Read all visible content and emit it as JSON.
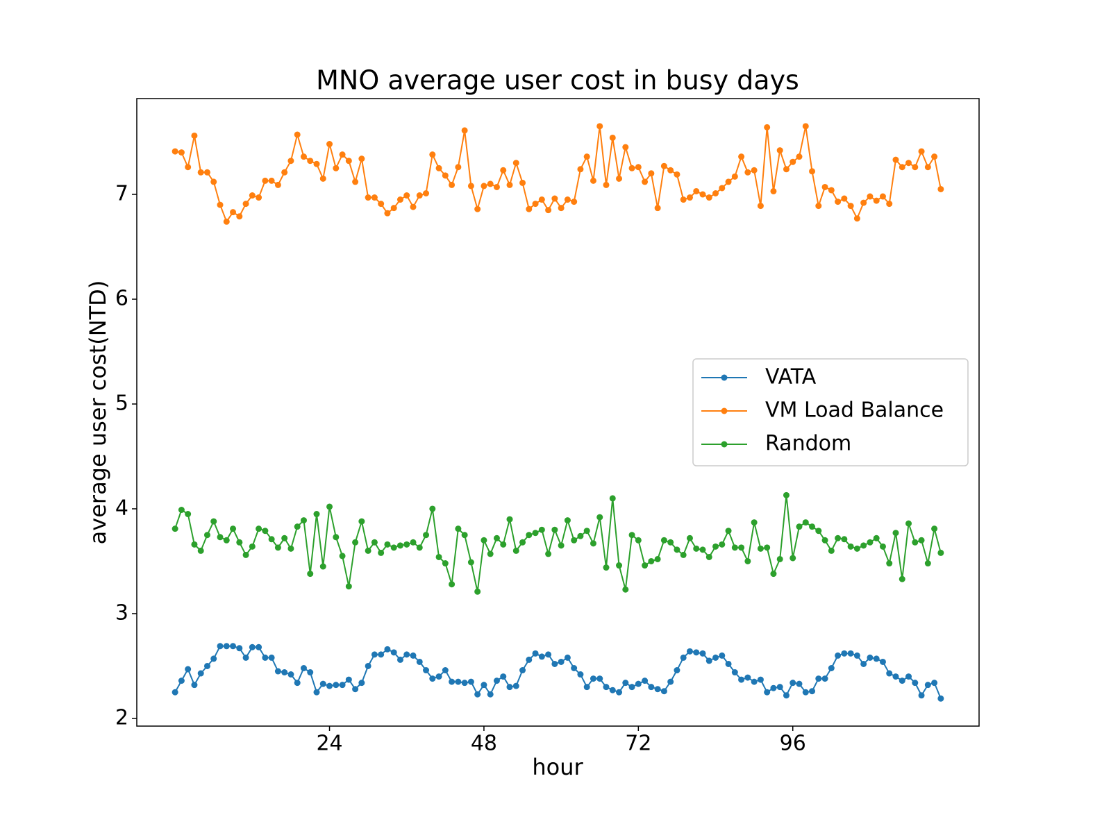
{
  "chart_data": {
    "type": "line",
    "title": "MNO average user cost in busy days",
    "xlabel": "hour",
    "ylabel": "average user cost(NTD)",
    "x": [
      0,
      1,
      2,
      3,
      4,
      5,
      6,
      7,
      8,
      9,
      10,
      11,
      12,
      13,
      14,
      15,
      16,
      17,
      18,
      19,
      20,
      21,
      22,
      23,
      24,
      25,
      26,
      27,
      28,
      29,
      30,
      31,
      32,
      33,
      34,
      35,
      36,
      37,
      38,
      39,
      40,
      41,
      42,
      43,
      44,
      45,
      46,
      47,
      48,
      49,
      50,
      51,
      52,
      53,
      54,
      55,
      56,
      57,
      58,
      59,
      60,
      61,
      62,
      63,
      64,
      65,
      66,
      67,
      68,
      69,
      70,
      71,
      72,
      73,
      74,
      75,
      76,
      77,
      78,
      79,
      80,
      81,
      82,
      83,
      84,
      85,
      86,
      87,
      88,
      89,
      90,
      91,
      92,
      93,
      94,
      95,
      96,
      97,
      98,
      99,
      100,
      101,
      102,
      103,
      104,
      105,
      106,
      107,
      108,
      109,
      110,
      111,
      112,
      113,
      114,
      115,
      116,
      117,
      118,
      119
    ],
    "series": [
      {
        "name": "VATA",
        "color": "#1f77b4",
        "values": [
          2.25,
          2.36,
          2.47,
          2.32,
          2.43,
          2.5,
          2.57,
          2.69,
          2.69,
          2.69,
          2.67,
          2.58,
          2.68,
          2.68,
          2.58,
          2.58,
          2.45,
          2.44,
          2.42,
          2.34,
          2.48,
          2.44,
          2.25,
          2.33,
          2.31,
          2.32,
          2.32,
          2.37,
          2.28,
          2.34,
          2.5,
          2.61,
          2.61,
          2.66,
          2.63,
          2.56,
          2.61,
          2.6,
          2.54,
          2.46,
          2.38,
          2.4,
          2.46,
          2.35,
          2.35,
          2.34,
          2.35,
          2.23,
          2.32,
          2.23,
          2.36,
          2.4,
          2.3,
          2.31,
          2.46,
          2.56,
          2.62,
          2.59,
          2.61,
          2.52,
          2.54,
          2.58,
          2.48,
          2.42,
          2.3,
          2.38,
          2.38,
          2.3,
          2.27,
          2.25,
          2.34,
          2.3,
          2.33,
          2.36,
          2.3,
          2.28,
          2.26,
          2.35,
          2.46,
          2.58,
          2.64,
          2.63,
          2.62,
          2.55,
          2.58,
          2.6,
          2.52,
          2.44,
          2.37,
          2.39,
          2.35,
          2.37,
          2.25,
          2.29,
          2.3,
          2.22,
          2.34,
          2.33,
          2.25,
          2.26,
          2.38,
          2.38,
          2.48,
          2.6,
          2.62,
          2.62,
          2.6,
          2.52,
          2.58,
          2.57,
          2.54,
          2.43,
          2.4,
          2.36,
          2.4,
          2.34,
          2.22,
          2.32,
          2.34,
          2.19
        ]
      },
      {
        "name": "VM Load Balance",
        "color": "#ff7f0e",
        "values": [
          7.41,
          7.4,
          7.26,
          7.56,
          7.21,
          7.21,
          7.12,
          6.9,
          6.74,
          6.83,
          6.79,
          6.91,
          6.99,
          6.97,
          7.13,
          7.13,
          7.09,
          7.21,
          7.32,
          7.57,
          7.36,
          7.32,
          7.29,
          7.15,
          7.48,
          7.25,
          7.38,
          7.32,
          7.12,
          7.34,
          6.97,
          6.97,
          6.91,
          6.82,
          6.87,
          6.95,
          6.99,
          6.88,
          6.99,
          7.01,
          7.38,
          7.25,
          7.18,
          7.09,
          7.26,
          7.61,
          7.08,
          6.86,
          7.08,
          7.1,
          7.07,
          7.23,
          7.09,
          7.3,
          7.11,
          6.86,
          6.91,
          6.95,
          6.85,
          6.96,
          6.87,
          6.95,
          6.93,
          7.24,
          7.36,
          7.13,
          7.65,
          7.09,
          7.54,
          7.15,
          7.45,
          7.25,
          7.26,
          7.12,
          7.2,
          6.87,
          7.27,
          7.23,
          7.19,
          6.95,
          6.97,
          7.03,
          7.0,
          6.97,
          7.01,
          7.06,
          7.12,
          7.17,
          7.36,
          7.21,
          7.23,
          6.89,
          7.64,
          7.03,
          7.42,
          7.24,
          7.31,
          7.36,
          7.65,
          7.22,
          6.89,
          7.07,
          7.04,
          6.93,
          6.96,
          6.89,
          6.77,
          6.92,
          6.98,
          6.94,
          6.98,
          6.91,
          7.33,
          7.26,
          7.3,
          7.26,
          7.41,
          7.26,
          7.36,
          7.05
        ]
      },
      {
        "name": "Random",
        "color": "#2ca02c",
        "values": [
          3.81,
          3.99,
          3.95,
          3.66,
          3.6,
          3.75,
          3.88,
          3.73,
          3.7,
          3.81,
          3.68,
          3.56,
          3.64,
          3.81,
          3.79,
          3.71,
          3.63,
          3.72,
          3.62,
          3.83,
          3.89,
          3.38,
          3.95,
          3.45,
          4.02,
          3.73,
          3.55,
          3.26,
          3.68,
          3.88,
          3.6,
          3.68,
          3.58,
          3.66,
          3.63,
          3.65,
          3.66,
          3.68,
          3.63,
          3.75,
          4.0,
          3.54,
          3.48,
          3.28,
          3.81,
          3.75,
          3.49,
          3.21,
          3.7,
          3.57,
          3.72,
          3.66,
          3.9,
          3.6,
          3.68,
          3.75,
          3.77,
          3.8,
          3.57,
          3.8,
          3.65,
          3.89,
          3.7,
          3.74,
          3.79,
          3.67,
          3.92,
          3.44,
          4.1,
          3.46,
          3.23,
          3.75,
          3.7,
          3.46,
          3.5,
          3.52,
          3.7,
          3.68,
          3.61,
          3.56,
          3.72,
          3.62,
          3.61,
          3.54,
          3.64,
          3.66,
          3.79,
          3.63,
          3.63,
          3.5,
          3.87,
          3.62,
          3.63,
          3.38,
          3.52,
          4.13,
          3.53,
          3.83,
          3.87,
          3.83,
          3.79,
          3.7,
          3.6,
          3.72,
          3.71,
          3.64,
          3.62,
          3.65,
          3.68,
          3.72,
          3.64,
          3.48,
          3.77,
          3.33,
          3.86,
          3.68,
          3.7,
          3.48,
          3.81,
          3.58
        ]
      }
    ],
    "xlim": [
      -5.95,
      124.95
    ],
    "xticks": [
      24,
      48,
      72,
      96
    ],
    "ylim": [
      1.927,
      7.914
    ],
    "yticks": [
      2,
      3,
      4,
      5,
      6,
      7
    ],
    "legend": "right"
  }
}
